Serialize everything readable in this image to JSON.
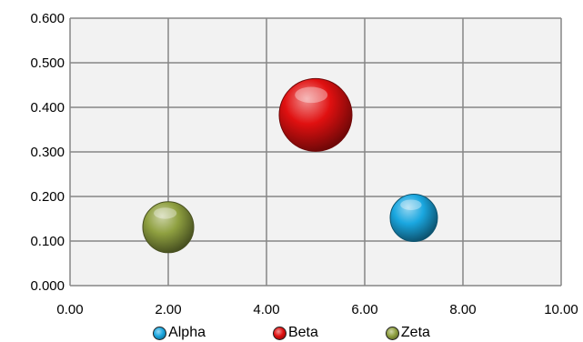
{
  "chart_data": {
    "type": "bubble",
    "title": "",
    "xlabel": "",
    "ylabel": "",
    "xlim": [
      0,
      10
    ],
    "ylim": [
      0,
      0.6
    ],
    "x_ticks": [
      "0.00",
      "2.00",
      "4.00",
      "6.00",
      "8.00",
      "10.00"
    ],
    "y_ticks": [
      "0.000",
      "0.100",
      "0.200",
      "0.300",
      "0.400",
      "0.500",
      "0.600"
    ],
    "grid": true,
    "legend_position": "bottom",
    "series": [
      {
        "name": "Alpha",
        "x": 7.0,
        "y": 0.152,
        "size": 0.65,
        "color": "#1aa7e0"
      },
      {
        "name": "Beta",
        "x": 5.0,
        "y": 0.383,
        "size": 1.0,
        "color": "#e01010"
      },
      {
        "name": "Zeta",
        "x": 2.0,
        "y": 0.131,
        "size": 0.7,
        "color": "#8fa040"
      }
    ]
  },
  "colors": {
    "plot_background": "#f2f2f2",
    "gridline": "#868686"
  }
}
